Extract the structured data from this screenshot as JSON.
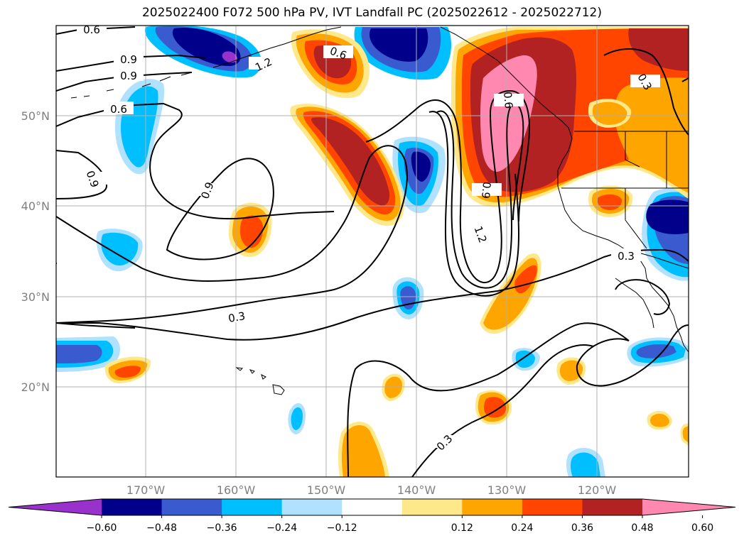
{
  "title": "2025022400 F072 500 hPa PV, IVT Landfall PC (2025022612 - 2025022712)",
  "axes": {
    "lat_labels": [
      "50°N",
      "40°N",
      "30°N",
      "20°N"
    ],
    "lon_labels": [
      "170°W",
      "160°W",
      "150°W",
      "140°W",
      "130°W",
      "120°W"
    ]
  },
  "contour_labels": [
    "0.6",
    "0.9",
    "0.9",
    "0.6",
    "1.2",
    "0.6",
    "0.6",
    "0.9",
    "0.9",
    "0.9",
    "1.2",
    "0.3",
    "0.3",
    "0.3",
    "0.3"
  ],
  "colorbar": {
    "colors": [
      "#9932cc",
      "#00008b",
      "#3a5bd0",
      "#00bfff",
      "#b0e2ff",
      "#ffffff",
      "#ffe88a",
      "#ffa500",
      "#ff4500",
      "#b22222",
      "#ff88b0"
    ],
    "tick_labels": [
      "−0.60",
      "−0.48",
      "−0.36",
      "−0.24",
      "−0.12",
      "0.12",
      "0.24",
      "0.36",
      "0.48",
      "0.60"
    ]
  }
}
